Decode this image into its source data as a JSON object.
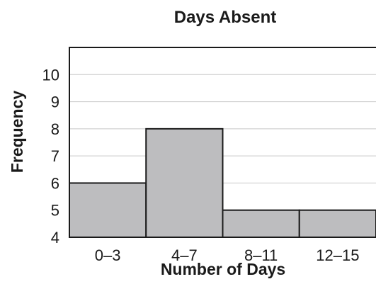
{
  "chart_data": {
    "type": "bar",
    "title": "Days Absent",
    "xlabel": "Number of Days",
    "ylabel": "Frequency",
    "categories": [
      "0–3",
      "4–7",
      "8–11",
      "12–15"
    ],
    "values": [
      6,
      8,
      5,
      5
    ],
    "ylim": [
      4,
      11
    ],
    "yticks": [
      4,
      5,
      6,
      7,
      8,
      9,
      10
    ],
    "grid": true,
    "colors": {
      "bar": "#bdbdbf",
      "outline": "#1a1a1a"
    }
  }
}
